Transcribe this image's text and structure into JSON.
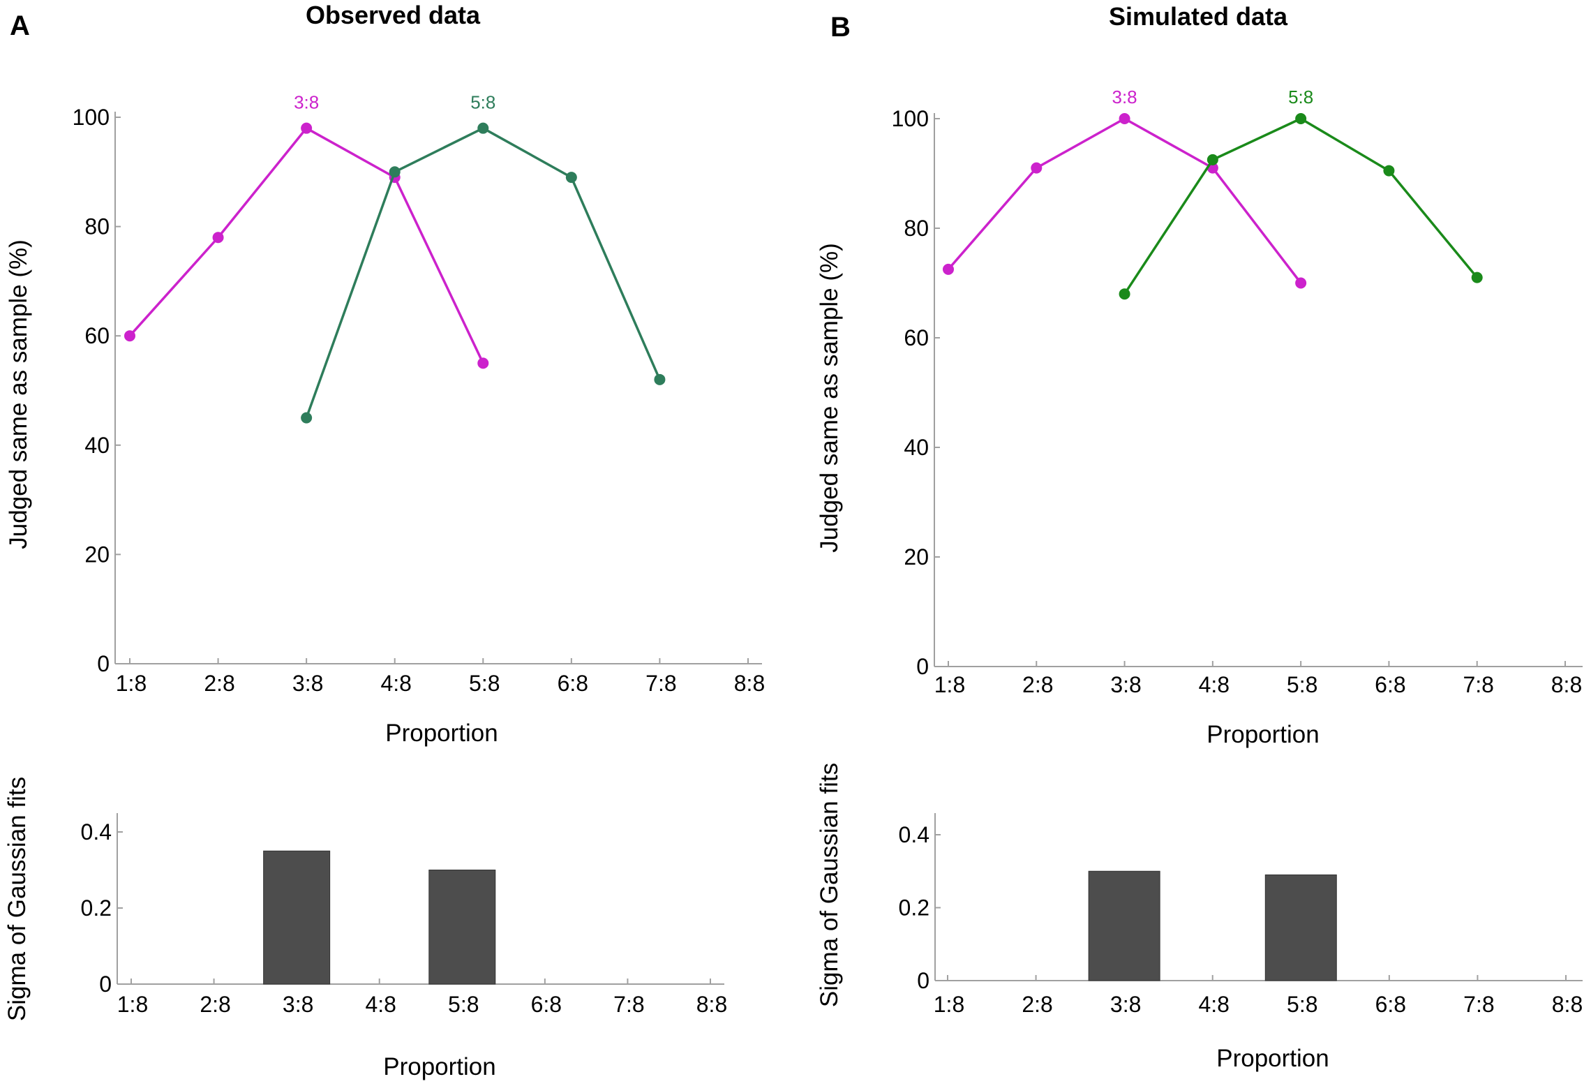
{
  "colors": {
    "magenta": "#cc22cc",
    "observed_green": "#2e7d5b",
    "simulated_green": "#1a8a1a",
    "bar_fill": "#4d4d4d",
    "axis": "#a0a0a0"
  },
  "panels": [
    {
      "letter": "A",
      "title": "Observed data",
      "top_chart": {
        "ylabel": "Judged same as sample (%)",
        "xlabel": "Proportion"
      },
      "bottom_chart": {
        "ylabel": "Sigma of Gaussian fits",
        "xlabel": "Proportion"
      }
    },
    {
      "letter": "B",
      "title": "Simulated data",
      "top_chart": {
        "ylabel": "Judged same as sample (%)",
        "xlabel": "Proportion"
      },
      "bottom_chart": {
        "ylabel": "Sigma of Gaussian fits",
        "xlabel": "Proportion"
      }
    }
  ],
  "chart_data": [
    {
      "panel": "A",
      "type": "line",
      "title": "Observed data",
      "xlabel": "Proportion",
      "ylabel": "Judged same as sample (%)",
      "categories": [
        "1:8",
        "2:8",
        "3:8",
        "4:8",
        "5:8",
        "6:8",
        "7:8",
        "8:8"
      ],
      "yticks": [
        0,
        20,
        40,
        60,
        80,
        100
      ],
      "ylim": [
        0,
        100
      ],
      "grid": false,
      "series": [
        {
          "name": "3:8",
          "color": "#cc22cc",
          "x": [
            "1:8",
            "2:8",
            "3:8",
            "4:8",
            "5:8"
          ],
          "values": [
            60,
            78,
            98,
            89,
            55
          ]
        },
        {
          "name": "5:8",
          "color": "#2e7d5b",
          "x": [
            "3:8",
            "4:8",
            "5:8",
            "6:8",
            "7:8"
          ],
          "values": [
            45,
            90,
            98,
            89,
            52
          ]
        }
      ],
      "annotations": [
        {
          "text": "3:8",
          "x": "3:8",
          "color": "#cc22cc"
        },
        {
          "text": "5:8",
          "x": "5:8",
          "color": "#2e7d5b"
        }
      ]
    },
    {
      "panel": "A",
      "type": "bar",
      "xlabel": "Proportion",
      "ylabel": "Sigma of Gaussian fits",
      "categories": [
        "1:8",
        "2:8",
        "3:8",
        "4:8",
        "5:8",
        "6:8",
        "7:8",
        "8:8"
      ],
      "values": [
        0,
        0,
        0.35,
        0,
        0.3,
        0,
        0,
        0
      ],
      "yticks": [
        0,
        0.2,
        0.4
      ],
      "ylim": [
        0,
        0.45
      ],
      "grid": false
    },
    {
      "panel": "B",
      "type": "line",
      "title": "Simulated data",
      "xlabel": "Proportion",
      "ylabel": "Judged same as sample (%)",
      "categories": [
        "1:8",
        "2:8",
        "3:8",
        "4:8",
        "5:8",
        "6:8",
        "7:8",
        "8:8"
      ],
      "yticks": [
        0,
        20,
        40,
        60,
        80,
        100
      ],
      "ylim": [
        0,
        100
      ],
      "grid": false,
      "series": [
        {
          "name": "3:8",
          "color": "#cc22cc",
          "x": [
            "1:8",
            "2:8",
            "3:8",
            "4:8",
            "5:8"
          ],
          "values": [
            72.5,
            91,
            100,
            91,
            70
          ]
        },
        {
          "name": "5:8",
          "color": "#1a8a1a",
          "x": [
            "3:8",
            "4:8",
            "5:8",
            "6:8",
            "7:8"
          ],
          "values": [
            68,
            92.5,
            100,
            90.5,
            71
          ]
        }
      ],
      "annotations": [
        {
          "text": "3:8",
          "x": "3:8",
          "color": "#cc22cc"
        },
        {
          "text": "5:8",
          "x": "5:8",
          "color": "#1a8a1a"
        }
      ]
    },
    {
      "panel": "B",
      "type": "bar",
      "xlabel": "Proportion",
      "ylabel": "Sigma of Gaussian fits",
      "categories": [
        "1:8",
        "2:8",
        "3:8",
        "4:8",
        "5:8",
        "6:8",
        "7:8",
        "8:8"
      ],
      "values": [
        0,
        0,
        0.3,
        0,
        0.29,
        0,
        0,
        0
      ],
      "yticks": [
        0,
        0.2,
        0.4
      ],
      "ylim": [
        0,
        0.45
      ],
      "grid": false
    }
  ]
}
